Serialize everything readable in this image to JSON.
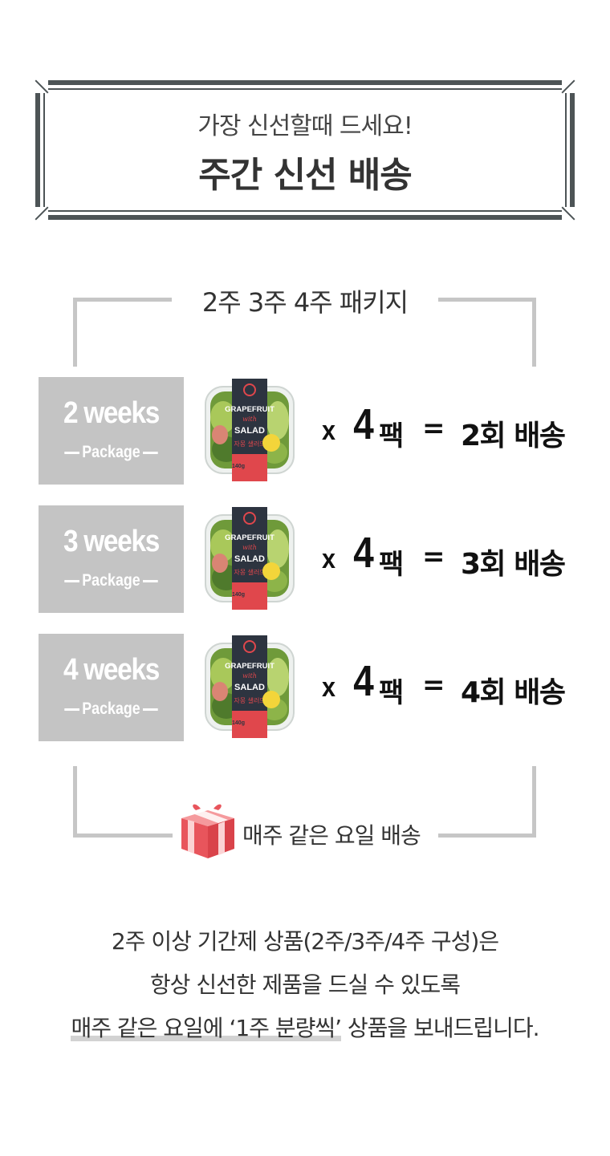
{
  "header": {
    "subtitle": "가장 신선할때 드세요!",
    "title": "주간 신선 배송"
  },
  "section": {
    "title": "2주 3주 4주 패키지"
  },
  "packages": [
    {
      "weeks": "2 weeks",
      "package_label": "Package",
      "multiplier": "x",
      "count": "4",
      "unit": "팩",
      "equals": "=",
      "result": "2회 배송"
    },
    {
      "weeks": "3 weeks",
      "package_label": "Package",
      "multiplier": "x",
      "count": "4",
      "unit": "팩",
      "equals": "=",
      "result": "3회 배송"
    },
    {
      "weeks": "4 weeks",
      "package_label": "Package",
      "multiplier": "x",
      "count": "4",
      "unit": "팩",
      "equals": "=",
      "result": "4회 배송"
    }
  ],
  "product_label": {
    "line1": "GRAPEFRUIT",
    "line2": "with",
    "line3": "SALAD",
    "line4": "자몽 샐러드",
    "weight": "140g"
  },
  "delivery": {
    "label": "매주 같은 요일 배송",
    "icon": "gift-box-icon"
  },
  "notes": {
    "line1": "2주 이상 기간제 상품(2주/3주/4주 구성)은",
    "line2": "항상 신선한 제품을 드실 수 있도록",
    "line3_highlight": "매주 같은 요일에 ‘1주 분량씩’",
    "line3_rest": " 상품을 보내드립니다."
  },
  "colors": {
    "frame": "#4d5456",
    "tile": "#c4c4c4",
    "bracket": "#c6c6c6",
    "gift": "#e8555c",
    "label_dark": "#2d3440",
    "label_red": "#e0474c"
  }
}
